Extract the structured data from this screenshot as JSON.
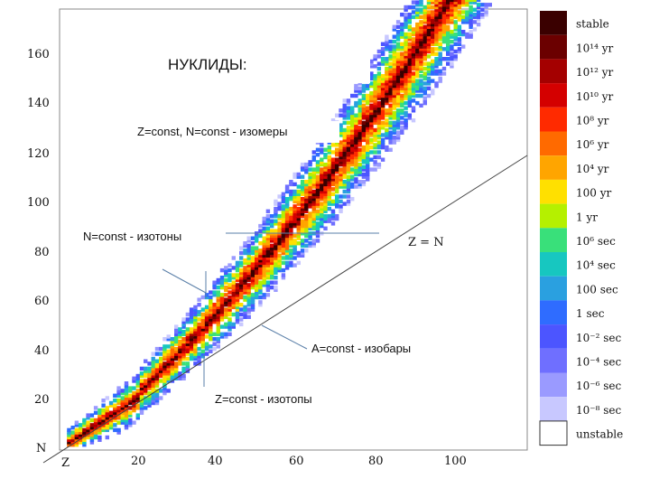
{
  "title": "НУКЛИДЫ:",
  "annotations": {
    "isomers": "Z=const,  N=const -  изомеры",
    "isotones": "N=const - изотоны",
    "isobars": "A=const - изобары",
    "isotopes": "Z=const - изотопы"
  },
  "axes": {
    "y_label": "N",
    "x_label": "Z",
    "diagonal_label": "Z = N",
    "x_ticks": [
      "20",
      "40",
      "60",
      "80",
      "100"
    ],
    "y_ticks": [
      "20",
      "40",
      "60",
      "80",
      "100",
      "120",
      "140",
      "160"
    ]
  },
  "legend": {
    "items": [
      "stable",
      "10¹⁴ yr",
      "10¹² yr",
      "10¹⁰ yr",
      "10⁸ yr",
      "10⁶ yr",
      "10⁴ yr",
      "100 yr",
      "1 yr",
      "10⁶ sec",
      "10⁴ sec",
      "100 sec",
      "1 sec",
      "10⁻² sec",
      "10⁻⁴ sec",
      "10⁻⁶ sec",
      "10⁻⁸ sec",
      "unstable"
    ],
    "colors": [
      "#3a0000",
      "#6b0000",
      "#a40000",
      "#d40000",
      "#ff2a00",
      "#ff6a00",
      "#ffa500",
      "#ffe000",
      "#b5f000",
      "#39e07a",
      "#17c7c0",
      "#2aa0e0",
      "#2f6cff",
      "#4c55ff",
      "#6f6fff",
      "#9a9aff",
      "#c8c8ff",
      "#ffffff"
    ]
  }
}
